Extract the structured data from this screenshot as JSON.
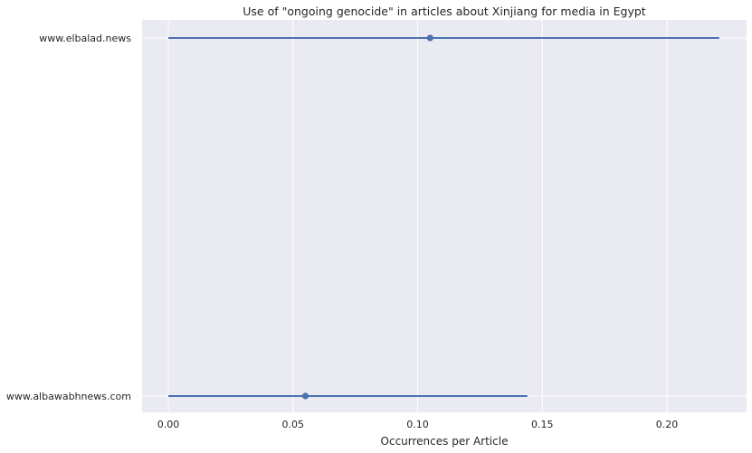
{
  "chart_data": {
    "type": "scatter",
    "subtype": "point-range",
    "title": "Use of \"ongoing genocide\" in articles about Xinjiang for media in Egypt",
    "xlabel": "Occurrences per Article",
    "ylabel": "",
    "xlim": [
      -0.01,
      0.32
    ],
    "xticks": [
      0.0,
      0.05,
      0.1,
      0.15,
      0.2
    ],
    "xtick_labels": [
      "0.00",
      "0.05",
      "0.10",
      "0.15",
      "0.20"
    ],
    "categories": [
      "www.elbalad.news",
      "www.albawabhnews.com"
    ],
    "points": [
      {
        "label": "www.elbalad.news",
        "value": 0.105,
        "low": 0.0,
        "high": 0.221
      },
      {
        "label": "www.albawabhnews.com",
        "value": 0.055,
        "low": 0.0,
        "high": 0.144
      }
    ],
    "grid": true,
    "colors": {
      "background": "#eaeaf2",
      "grid": "#ffffff",
      "series": "#4c72b0"
    }
  }
}
